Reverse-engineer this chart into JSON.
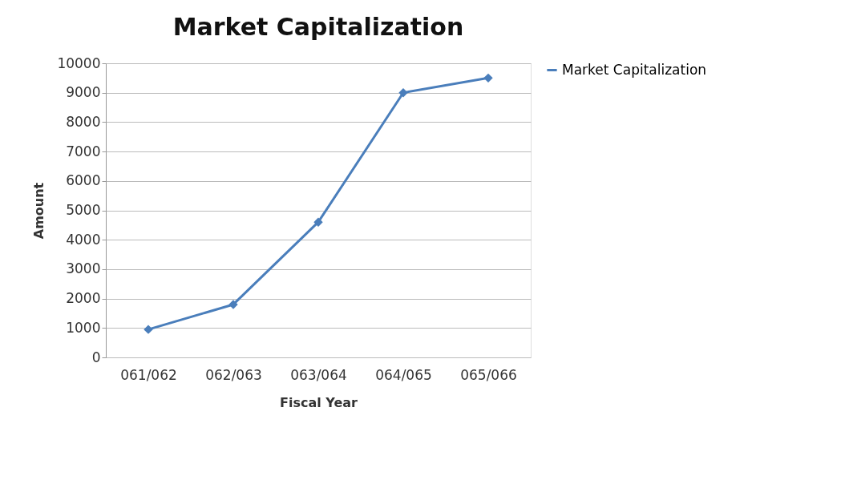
{
  "chart_data": {
    "type": "line",
    "title": "Market Capitalization",
    "xlabel": "Fiscal Year",
    "ylabel": "Amount",
    "categories": [
      "061/062",
      "062/063",
      "063/064",
      "064/065",
      "065/066"
    ],
    "series": [
      {
        "name": "Market Capitalization",
        "color": "#4a7ebb",
        "values": [
          950,
          1800,
          4600,
          9000,
          9500
        ]
      }
    ],
    "ylim": [
      0,
      10000
    ],
    "yticks": [
      0,
      1000,
      2000,
      3000,
      4000,
      5000,
      6000,
      7000,
      8000,
      9000,
      10000
    ],
    "grid": "y",
    "legend": "right",
    "marker": "diamond",
    "line_style": "solid"
  }
}
